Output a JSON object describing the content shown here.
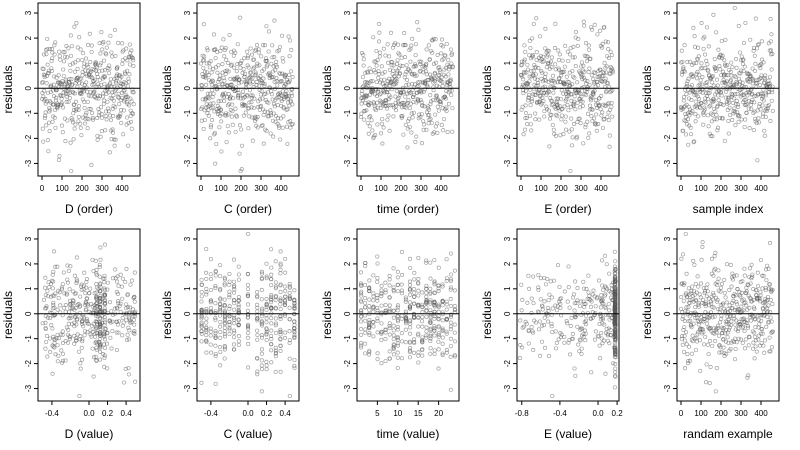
{
  "chart_data": [
    {
      "type": "scatter",
      "xlabel": "D (order)",
      "ylabel": "residuals",
      "xlim": [
        -20,
        490
      ],
      "ylim": [
        -3.5,
        3.4
      ],
      "xticks": [
        "0",
        "100",
        "200",
        "300",
        "400"
      ],
      "yticks": [
        "-3",
        "-2",
        "-1",
        "0",
        "1",
        "2",
        "3"
      ],
      "ref_y": 0,
      "kind": "order",
      "n": 460
    },
    {
      "type": "scatter",
      "xlabel": "C (order)",
      "ylabel": "residuals",
      "xlim": [
        -20,
        490
      ],
      "ylim": [
        -3.5,
        3.4
      ],
      "xticks": [
        "0",
        "100",
        "200",
        "300",
        "400"
      ],
      "yticks": [
        "-3",
        "-2",
        "-1",
        "0",
        "1",
        "2",
        "3"
      ],
      "ref_y": 0,
      "kind": "order",
      "n": 460
    },
    {
      "type": "scatter",
      "xlabel": "time (order)",
      "ylabel": "residuals",
      "xlim": [
        -20,
        490
      ],
      "ylim": [
        -3.5,
        3.4
      ],
      "xticks": [
        "0",
        "100",
        "200",
        "300",
        "400"
      ],
      "yticks": [
        "-3",
        "-2",
        "-1",
        "0",
        "1",
        "2",
        "3"
      ],
      "ref_y": 0,
      "kind": "order",
      "n": 460
    },
    {
      "type": "scatter",
      "xlabel": "E (order)",
      "ylabel": "residuals",
      "xlim": [
        -20,
        490
      ],
      "ylim": [
        -3.5,
        3.4
      ],
      "xticks": [
        "0",
        "100",
        "200",
        "300",
        "400"
      ],
      "yticks": [
        "-3",
        "-2",
        "-1",
        "0",
        "1",
        "2",
        "3"
      ],
      "ref_y": 0,
      "kind": "order",
      "n": 460
    },
    {
      "type": "scatter",
      "xlabel": "sample index",
      "ylabel": "residuals",
      "xlim": [
        -20,
        490
      ],
      "ylim": [
        -3.5,
        3.4
      ],
      "xticks": [
        "0",
        "100",
        "200",
        "300",
        "400"
      ],
      "yticks": [
        "-3",
        "-2",
        "-1",
        "0",
        "1",
        "2",
        "3"
      ],
      "ref_y": 0,
      "kind": "order",
      "n": 460
    },
    {
      "type": "scatter",
      "xlabel": "D (value)",
      "ylabel": "residuals",
      "xlim": [
        -0.55,
        0.55
      ],
      "ylim": [
        -3.5,
        3.4
      ],
      "xticks": [
        "-0.4",
        "0.0",
        "0.2",
        "0.4"
      ],
      "yticks": [
        "-3",
        "-2",
        "-1",
        "0",
        "1",
        "2",
        "3"
      ],
      "ref_y": 0,
      "kind": "uniform",
      "x_range": [
        -0.5,
        0.5
      ],
      "n": 460,
      "clusters": [
        0.08,
        0.12,
        0.17
      ]
    },
    {
      "type": "scatter",
      "xlabel": "C (value)",
      "ylabel": "residuals",
      "xlim": [
        -0.55,
        0.55
      ],
      "ylim": [
        -3.5,
        3.4
      ],
      "xticks": [
        "-0.4",
        "0.0",
        "0.2",
        "0.4"
      ],
      "yticks": [
        "-3",
        "-2",
        "-1",
        "0",
        "1",
        "2",
        "3"
      ],
      "ref_y": 0,
      "kind": "columns",
      "columns": [
        -0.5,
        -0.45,
        -0.4,
        -0.35,
        -0.3,
        -0.25,
        -0.2,
        -0.15,
        -0.1,
        0.0,
        0.1,
        0.15,
        0.2,
        0.25,
        0.3,
        0.35,
        0.4,
        0.45,
        0.5
      ],
      "n": 400
    },
    {
      "type": "scatter",
      "xlabel": "time (value)",
      "ylabel": "residuals",
      "xlim": [
        0,
        25
      ],
      "ylim": [
        -3.5,
        3.4
      ],
      "xticks": [
        "5",
        "10",
        "15",
        "20"
      ],
      "yticks": [
        "-3",
        "-2",
        "-1",
        "0",
        "1",
        "2",
        "3"
      ],
      "ref_y": 0,
      "kind": "columns",
      "columns": [
        1,
        2,
        3,
        4,
        5,
        6,
        7,
        8,
        9,
        10,
        11,
        12,
        13,
        14,
        15,
        16,
        17,
        18,
        19,
        20,
        21,
        22,
        23,
        24
      ],
      "n": 420
    },
    {
      "type": "scatter",
      "xlabel": "E (value)",
      "ylabel": "residuals",
      "xlim": [
        -0.85,
        0.22
      ],
      "ylim": [
        -3.5,
        3.4
      ],
      "xticks": [
        "-0.8",
        "-0.4",
        "0.0",
        "0.2"
      ],
      "yticks": [
        "-3",
        "-2",
        "-1",
        "0",
        "1",
        "2",
        "3"
      ],
      "ref_y": 0,
      "kind": "skewed",
      "x_range": [
        -0.82,
        0.18
      ],
      "dense_x": 0.18,
      "n": 460
    },
    {
      "type": "scatter",
      "xlabel": "randam example",
      "ylabel": "residuals",
      "xlim": [
        -20,
        490
      ],
      "ylim": [
        -3.5,
        3.4
      ],
      "xticks": [
        "0",
        "100",
        "200",
        "300",
        "400"
      ],
      "yticks": [
        "-3",
        "-2",
        "-1",
        "0",
        "1",
        "2",
        "3"
      ],
      "ref_y": 0,
      "kind": "order",
      "n": 460
    }
  ]
}
